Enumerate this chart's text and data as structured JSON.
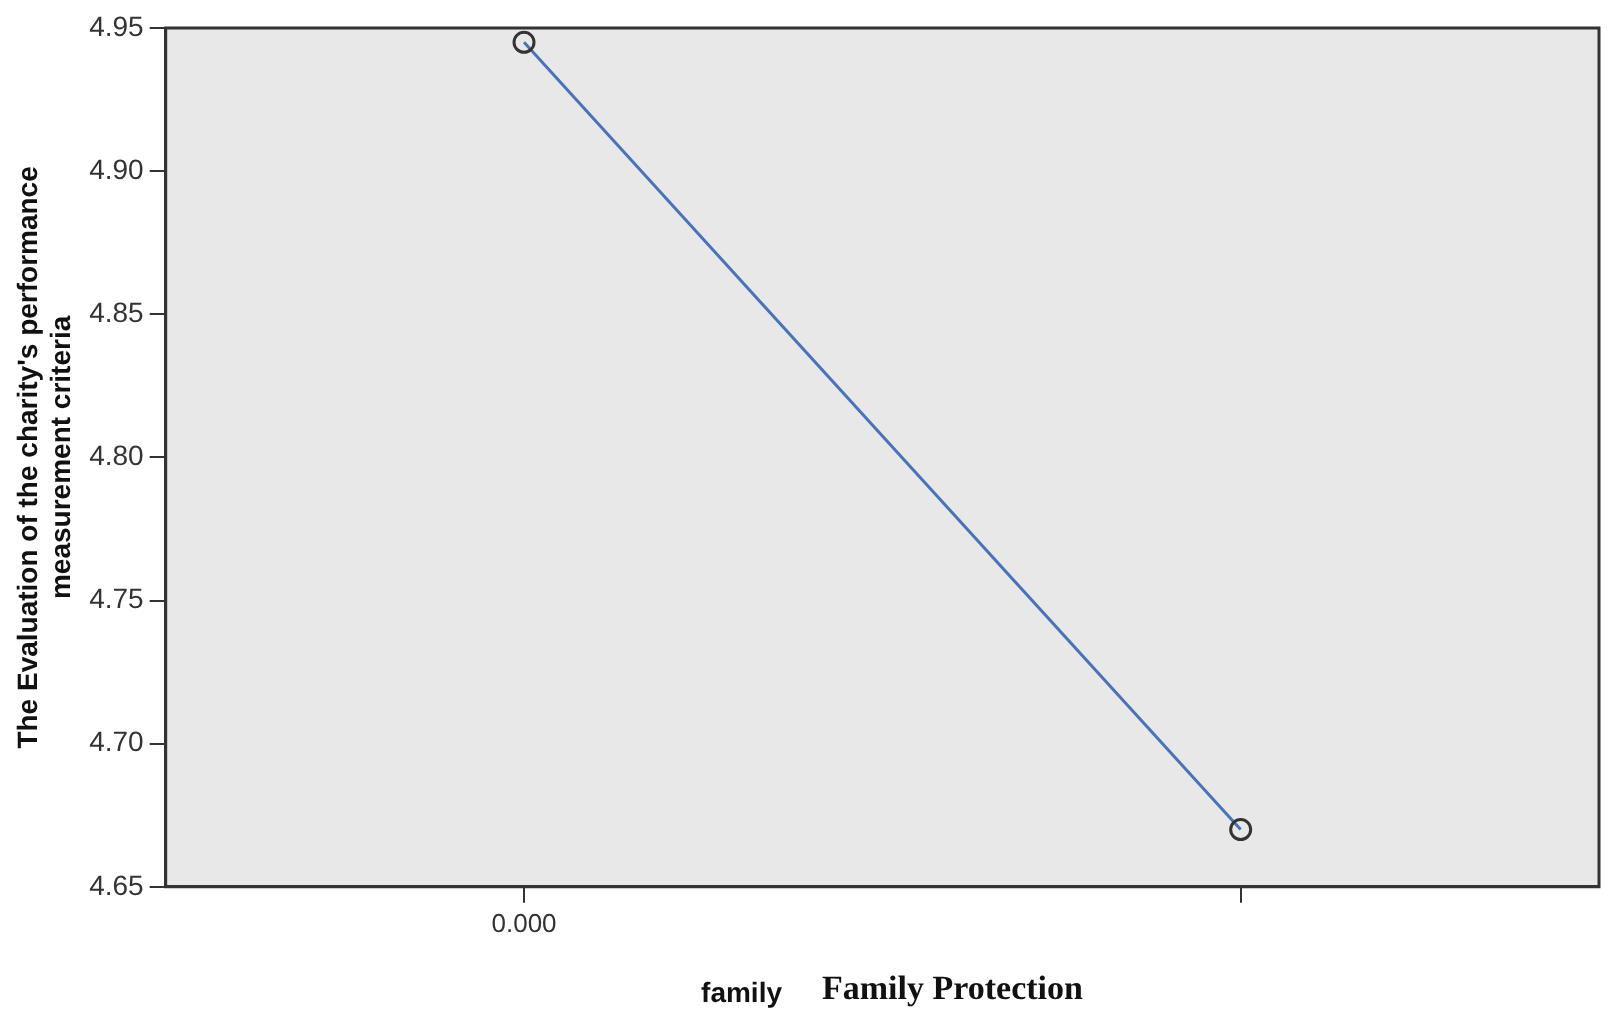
{
  "chart_data": {
    "type": "line",
    "categories": [
      "0.000",
      null
    ],
    "series": [
      {
        "color": "#4a72b8",
        "values": [
          4.945,
          4.67
        ]
      }
    ],
    "ylabel": "The Evaluation of the charity's performance\nmeasurement criteria",
    "xlabel": "family",
    "annotations": [
      "Family Protection"
    ],
    "ylim": [
      4.65,
      4.95
    ],
    "yticks": [
      4.65,
      {
        "value": 4.7,
        "label": "4.70"
      },
      4.75,
      {
        "value": 4.8,
        "label": "4.80"
      },
      4.85,
      {
        "value": 4.9,
        "label": "4.90"
      },
      4.95
    ],
    "marker": "circle",
    "grid": false,
    "legend": false
  }
}
